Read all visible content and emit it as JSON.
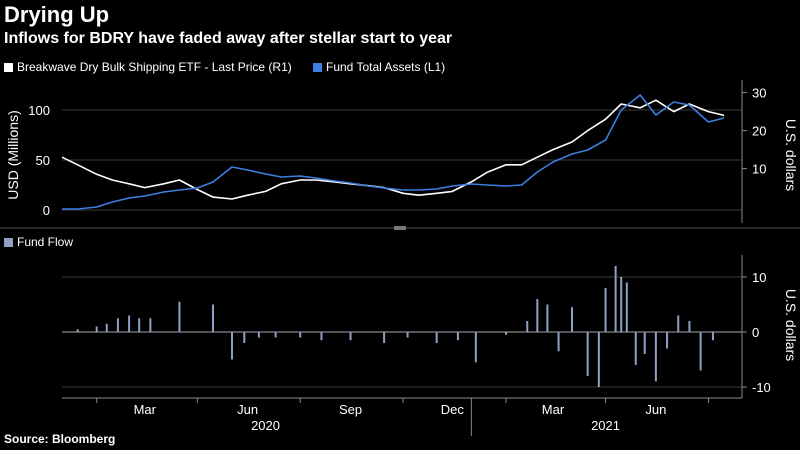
{
  "header": {
    "title": "Drying Up",
    "subtitle": "Inflows for BDRY have faded away after stellar start to year"
  },
  "footer": {
    "source": "Source: Bloomberg"
  },
  "colors": {
    "price": "#ffffff",
    "assets": "#3d7ee0",
    "flow": "#8ea1c4",
    "grid": "#3a3a3a",
    "axis": "#888888"
  },
  "chart_data": [
    {
      "type": "line",
      "legend": [
        "Breakwave Dry Bulk Shipping ETF - Last Price (R1)",
        "Fund Total Assets (L1)"
      ],
      "ylabel_left": "USD (Millions)",
      "ylabel_right": "U.S. dollars",
      "ylim_left": [
        -8,
        125
      ],
      "ylim_right": [
        -3,
        32
      ],
      "yticks_left": [
        "0",
        "50",
        "100"
      ],
      "yticks_right": [
        "10",
        "20",
        "30"
      ],
      "series": [
        {
          "name": "Breakwave Dry Bulk Shipping ETF - Last Price (R1)",
          "axis": "right",
          "x": [
            "2020-01-01",
            "2020-01-15",
            "2020-02-01",
            "2020-02-15",
            "2020-03-01",
            "2020-03-15",
            "2020-04-01",
            "2020-04-15",
            "2020-05-01",
            "2020-05-15",
            "2020-06-01",
            "2020-06-15",
            "2020-07-01",
            "2020-07-15",
            "2020-08-01",
            "2020-08-15",
            "2020-09-01",
            "2020-09-15",
            "2020-10-01",
            "2020-10-15",
            "2020-11-01",
            "2020-11-15",
            "2020-12-01",
            "2020-12-15",
            "2021-01-01",
            "2021-01-15",
            "2021-02-01",
            "2021-02-15",
            "2021-03-01",
            "2021-03-15",
            "2021-04-01",
            "2021-04-15",
            "2021-05-01",
            "2021-05-15",
            "2021-06-01",
            "2021-06-15",
            "2021-07-01",
            "2021-07-15",
            "2021-08-01",
            "2021-08-15"
          ],
          "values": [
            13,
            11,
            8.5,
            7,
            6,
            5,
            6,
            7,
            4.5,
            2.5,
            2,
            3,
            4,
            6,
            7,
            7,
            6.5,
            6,
            5.5,
            5,
            3.5,
            3,
            3.5,
            4,
            6.5,
            9,
            11,
            11,
            13,
            15,
            17,
            20,
            23,
            27,
            26,
            28,
            25,
            27,
            25,
            24
          ]
        },
        {
          "name": "Fund Total Assets (L1)",
          "axis": "left",
          "x": [
            "2020-01-01",
            "2020-01-15",
            "2020-02-01",
            "2020-02-15",
            "2020-03-01",
            "2020-03-15",
            "2020-04-01",
            "2020-04-15",
            "2020-05-01",
            "2020-05-15",
            "2020-06-01",
            "2020-06-15",
            "2020-07-01",
            "2020-07-15",
            "2020-08-01",
            "2020-08-15",
            "2020-09-01",
            "2020-09-15",
            "2020-10-01",
            "2020-10-15",
            "2020-11-01",
            "2020-11-15",
            "2020-12-01",
            "2020-12-15",
            "2021-01-01",
            "2021-01-15",
            "2021-02-01",
            "2021-02-15",
            "2021-03-01",
            "2021-03-15",
            "2021-04-01",
            "2021-04-15",
            "2021-05-01",
            "2021-05-15",
            "2021-06-01",
            "2021-06-15",
            "2021-07-01",
            "2021-07-15",
            "2021-08-01",
            "2021-08-15"
          ],
          "values": [
            1,
            1,
            3,
            8,
            12,
            14,
            18,
            20,
            22,
            28,
            43,
            40,
            36,
            33,
            34,
            32,
            29,
            27,
            24,
            22,
            20,
            20,
            21,
            24,
            26,
            25,
            24,
            25,
            38,
            48,
            56,
            60,
            70,
            100,
            115,
            95,
            108,
            105,
            88,
            92
          ]
        }
      ]
    },
    {
      "type": "bar",
      "legend": [
        "Fund Flow"
      ],
      "ylabel_right": "U.S. dollars",
      "ylim": [
        -12,
        14
      ],
      "yticks_right": [
        "10",
        "0",
        "-10"
      ],
      "x": [
        "2020-01-15",
        "2020-02-01",
        "2020-02-10",
        "2020-02-20",
        "2020-03-01",
        "2020-03-10",
        "2020-03-20",
        "2020-04-15",
        "2020-05-15",
        "2020-06-01",
        "2020-06-12",
        "2020-06-25",
        "2020-07-10",
        "2020-08-01",
        "2020-08-20",
        "2020-09-15",
        "2020-10-15",
        "2020-11-05",
        "2020-12-01",
        "2020-12-20",
        "2021-01-05",
        "2021-02-01",
        "2021-02-20",
        "2021-03-01",
        "2021-03-10",
        "2021-03-20",
        "2021-04-01",
        "2021-04-15",
        "2021-04-25",
        "2021-05-01",
        "2021-05-10",
        "2021-05-15",
        "2021-05-20",
        "2021-05-28",
        "2021-06-05",
        "2021-06-15",
        "2021-06-25",
        "2021-07-05",
        "2021-07-15",
        "2021-07-25",
        "2021-08-05"
      ],
      "values": [
        0.5,
        1,
        1.5,
        2.5,
        3,
        2.5,
        2.5,
        5.5,
        5,
        -5,
        -2,
        -1,
        -1,
        -1,
        -1.5,
        -1.5,
        -2,
        -1,
        -2,
        -1.5,
        -5.5,
        -0.5,
        2,
        6,
        5,
        -3.5,
        4.5,
        -8,
        -10,
        8,
        12,
        10,
        9,
        -6,
        -4,
        -9,
        -3,
        3,
        2,
        -7,
        -1.5
      ]
    }
  ],
  "x_axis": {
    "months": [
      "Mar",
      "Jun",
      "Sep",
      "Dec",
      "Mar",
      "Jun"
    ],
    "years": [
      "2020",
      "2021"
    ]
  }
}
